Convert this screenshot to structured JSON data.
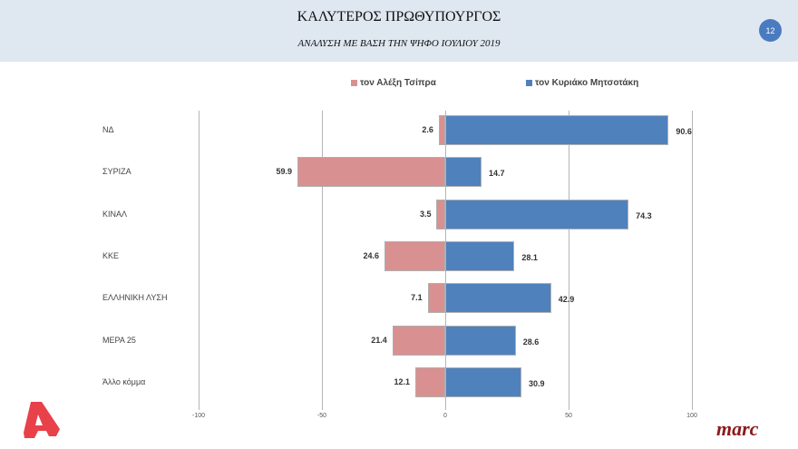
{
  "header": {
    "title": "ΚΑΛΥΤΕΡΟΣ ΠΡΩΘΥΠΟΥΡΓΟΣ",
    "subtitle": "ΑΝΑΛΥΣΗ ΜΕ ΒΑΣΗ ΤΗΝ ΨΗΦΟ ΙΟΥΛΙΟΥ 2019",
    "page_number": "12"
  },
  "legend": {
    "tsipras": "τον Αλέξη Τσίπρα",
    "mitsotakis": "τον Κυριάκο Μητσοτάκη"
  },
  "colors": {
    "tsipras": "#d99090",
    "mitsotakis": "#4f81bd",
    "header_bg": "#dfe7f1",
    "badge": "#4a7bc0",
    "alpha_logo": "#e8414a",
    "marc_logo": "#8b1a1a"
  },
  "logos": {
    "left": "alpha-logo",
    "right": "marc"
  },
  "axis": {
    "ticks": [
      "-100",
      "-50",
      "0",
      "50",
      "100"
    ]
  },
  "chart_data": {
    "type": "bar",
    "orientation": "horizontal",
    "stacked_diverging": true,
    "title": "ΚΑΛΥΤΕΡΟΣ ΠΡΩΘΥΠΟΥΡΓΟΣ",
    "subtitle": "ΑΝΑΛΥΣΗ ΜΕ ΒΑΣΗ ΤΗΝ ΨΗΦΟ ΙΟΥΛΙΟΥ 2019",
    "categories": [
      "ΝΔ",
      "ΣΥΡΙΖΑ",
      "ΚΙΝΑΛ",
      "ΚΚΕ",
      "ΕΛΛΗΝΙΚΗ ΛΥΣΗ",
      "ΜΕΡΑ 25",
      "Άλλο κόμμα"
    ],
    "series": [
      {
        "name": "τον Αλέξη Τσίπρα",
        "values": [
          2.6,
          59.9,
          3.5,
          24.6,
          7.1,
          21.4,
          12.1
        ],
        "labels": [
          "2.6",
          "59.9",
          "3.5",
          "24.6",
          "7.1",
          "21.4",
          "12.1"
        ],
        "direction": "negative",
        "color": "#d99090"
      },
      {
        "name": "τον Κυριάκο Μητσοτάκη",
        "values": [
          90.6,
          14.7,
          74.3,
          28.1,
          42.9,
          28.6,
          30.9
        ],
        "labels": [
          "90.6",
          "14.7",
          "74.3",
          "28.1",
          "42.9",
          "28.6",
          "30.9"
        ],
        "direction": "positive",
        "color": "#4f81bd"
      }
    ],
    "xlim": [
      -100,
      100
    ],
    "xticks": [
      -100,
      -50,
      0,
      50,
      100
    ],
    "grid": true,
    "legend_position": "top"
  }
}
